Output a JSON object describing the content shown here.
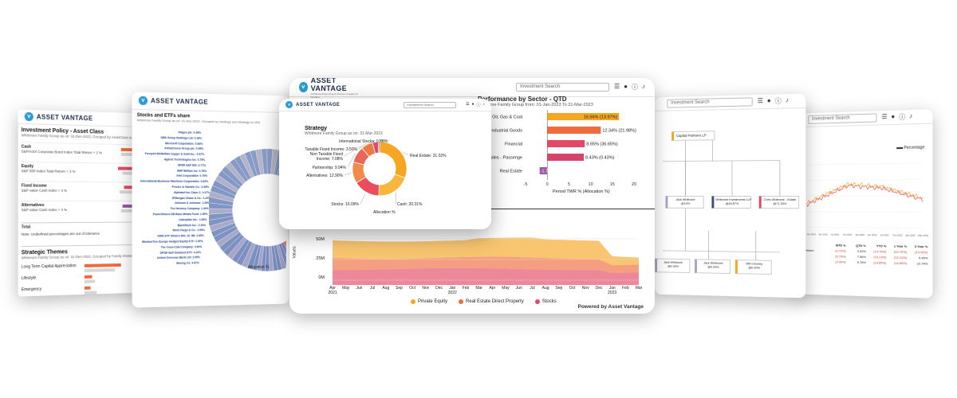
{
  "brand": {
    "name": "ASSET VANTAGE",
    "tagline": "Architected Reporting & Decision Insights for Families"
  },
  "common": {
    "search_placeholder": "Investment Search"
  },
  "card_policy": {
    "title": "Investment Policy - Asset Class",
    "subtitle": "Whitmore Family Group as on: 31-Dec-2022, Grouped by AssetClass in USD",
    "rows": [
      {
        "label": "Cash",
        "bench": "S&P/ASX Corporate Bond Index Total Return + 2 %"
      },
      {
        "label": "Equity",
        "bench": "S&P 500 Index Total Return + 3 %"
      },
      {
        "label": "Fixed Income",
        "bench": "S&P value Cash index + 3 %"
      },
      {
        "label": "Alternatives",
        "bench": "S&P value Cash index + 4 %"
      }
    ],
    "total_label": "Total",
    "note": "Note: Underlined percentages are out of tolerance",
    "themes_title": "Strategic Themes",
    "themes_subtitle": "Whitmore Family Group as on: 31-Dec-2022, Grouped by Family Strategic",
    "themes": [
      "Long Term Capital Appreciation",
      "Lifestyle",
      "Emergency"
    ]
  },
  "card_stocks": {
    "title": "Stocks and ETFs share",
    "subtitle": "Whitmore Family Group as on: 31-Dec-2022, Grouped by Holdings and Strategy in USD",
    "labels": [
      "Diageo plc: 0.48%",
      "DBS Group Holdings Ltd: 0.49%",
      "Microsoft Corporation: 0.60%",
      "AstraZeneca Group plc: 0.65%",
      "Freeport-McMoRan Copper & Gold Inc.: 0.67%",
      "Agilent Technologies Inc: 0.75%",
      "SPDR S&P 500: 0.77%",
      "BHP Billiton Inc: 0.76%",
      "Intel Corporation: 0.79%",
      "International Business Machines Corporation: 0.82%",
      "Procter & Gamble Co.: 0.99%",
      "Alphabet Inc Class C: 1.07%",
      "JPMorgan Chase & Co.: 1.20%",
      "Johnson & Johnson: 1.35%",
      "The Hershey Company: 1.40%",
      "PowerShares DB Base Metals Fund: 1.50%",
      "Caterpillar Inc.: 1.55%",
      "BlackRock Inc.: 2.30%",
      "Wells Fargo & Co.: 2.50%",
      "DWS ETF iShares Bbl. Gl. 8B: 2.65%",
      "WisdomTree Europe Hedged Equity ETF: 2.90%",
      "The Coca-Cola Company: 3.60%",
      "SPDR S&P Dividend ETF: 4.20%",
      "United Overseas Bank Ltd: 3.95%",
      "Boeing Co: 4.67%"
    ],
    "footer": "Allocation %"
  },
  "card_strategy": {
    "title": "Strategy",
    "subtitle": "Whitmore Family Group as on: 31-Mar-2023",
    "footer": "Allocation %",
    "slices": [
      {
        "label": "Real Estate: 31.02%",
        "value": 31.02,
        "color": "#f5a623"
      },
      {
        "label": "Cash: 20.31%",
        "value": 20.31,
        "color": "#f6b73c"
      },
      {
        "label": "Stocks: 16.09%",
        "value": 16.09,
        "color": "#ec4d5c"
      },
      {
        "label": "Alternatives: 12.90%",
        "value": 12.9,
        "color": "#f28b4a"
      },
      {
        "label": "Partnership: 9.94%",
        "value": 9.94,
        "color": "#e8665a"
      },
      {
        "label": "Non Taxable Fixed Income: 7.08%",
        "value": 7.08,
        "color": "#f07a3e"
      },
      {
        "label": "Taxable Fixed Income: 3.50%",
        "value": 3.5,
        "color": "#d94e66"
      },
      {
        "label": "International Stocks: 0.86%",
        "value": 0.86,
        "color": "#c23a5a"
      }
    ]
  },
  "card_sector": {
    "title": "Performance by Sector - QTD",
    "subtitle": "Whitmore Family Group from: 01-Jan-2023 To 31-Mar-2023",
    "xlabel": "Period TWR % (Allocation %)",
    "ticks": [
      "-5",
      "0",
      "5",
      "10",
      "15",
      "20"
    ],
    "bars": [
      {
        "label": "Oil, Gas & Coal",
        "value": 16.56,
        "text": "16.56% (13.97%)",
        "color": "#f5a623"
      },
      {
        "label": "Industrial Goods",
        "value": 12.34,
        "text": "12.34% (21.98%)",
        "color": "#ef6b3c"
      },
      {
        "label": "Financial",
        "value": 8.65,
        "text": "8.65% (36.65%)",
        "color": "#e34866"
      },
      {
        "label": "Automobiles - Passenger Cars",
        "value": 8.43,
        "text": "8.43% (0.43%)",
        "color": "#d6436b"
      },
      {
        "label": "Real Estate",
        "value": -1.75,
        "text": "-1.75% (39.37%)",
        "color": "#9b59a8"
      }
    ]
  },
  "card_area": {
    "ylabel": "Values",
    "yticks": [
      "50M",
      "25M",
      "0M"
    ],
    "months": [
      "Apr\n2021",
      "May",
      "Jun",
      "Jul",
      "Aug",
      "Sep",
      "Oct",
      "Nov",
      "Dec",
      "Jan\n2022",
      "Feb",
      "Mar",
      "Apr",
      "May",
      "Jun",
      "Jul",
      "Aug",
      "Sep",
      "Oct",
      "Nov",
      "Dec",
      "Jan\n2023",
      "Feb",
      "Mar"
    ],
    "legend": [
      {
        "label": "Private Equity",
        "color": "#f6a623"
      },
      {
        "label": "Real Estate Direct Property",
        "color": "#ef6b3c"
      },
      {
        "label": "Stocks",
        "color": "#e34866"
      }
    ],
    "powered": "Powered by Asset Vantage"
  },
  "card_org": {
    "root": "Capital Partners LP",
    "nodes": [
      "Jack Whitmore\n@13%",
      "Whitmore Investments LLP\n@40.87%",
      "Chris Whitmore - Estate\n@71.33%"
    ],
    "children": [
      "Jack Whitmore\n@0.00%",
      "Jack Whitmore\n@0.00%",
      "Will Clooney\n@0.00%"
    ]
  },
  "card_perf": {
    "legend": "Percentage",
    "x_ticks": [
      "Jan 2021",
      "Apr 2021",
      "Jul 2021",
      "Oct 2021",
      "Jan 2022",
      "Apr 2022",
      "Jul 2022",
      "Oct 2022",
      "Jan 2023",
      "Mar 2023"
    ],
    "table_title": "nce",
    "cols": [
      "MTD %",
      "QTD %",
      "YTD %",
      "1 Year %",
      "3 Year %"
    ],
    "rows": [
      {
        "label": "Total Return",
        "vals": [
          "(0.72%)",
          "3.32%",
          "(14.76%)",
          "(14.76%)",
          "(13.45%)"
        ]
      },
      {
        "label": "ers",
        "vals": [
          "(5.79%)",
          "7.56%",
          "(13.13%)",
          "(13.13%)",
          "5.40%"
        ]
      },
      {
        "label": "",
        "vals": [
          "(4.90%)",
          "5.78%",
          "(14.85%)",
          "(14.85%)",
          "10.74%"
        ]
      }
    ]
  }
}
